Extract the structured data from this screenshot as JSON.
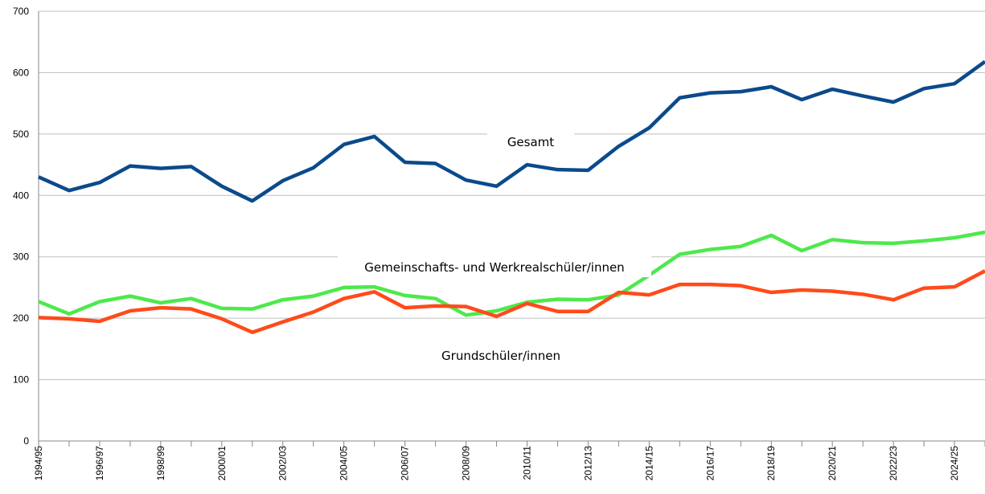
{
  "chart_data": {
    "type": "line",
    "categories": [
      "1994/95",
      null,
      "1996/97",
      null,
      "1998/99",
      null,
      "2000/01",
      null,
      "2002/03",
      null,
      "2004/05",
      null,
      "2006/07",
      null,
      "2008/09",
      null,
      "2010/11",
      null,
      "2012/13",
      null,
      "2014/15",
      null,
      "2016/17",
      null,
      "2018/19",
      null,
      "2020/21",
      null,
      "2022/23",
      null,
      "2024/25",
      null
    ],
    "series": [
      {
        "name": "Gesamt",
        "color": "#0b4a8b",
        "values": [
          430,
          408,
          421,
          448,
          444,
          447,
          415,
          391,
          424,
          445,
          483,
          496,
          454,
          452,
          425,
          415,
          450,
          442,
          441,
          480,
          510,
          559,
          567,
          569,
          577,
          556,
          573,
          562,
          552,
          574,
          582,
          618
        ]
      },
      {
        "name": "Gemeinschafts- und Werkrealschüler/innen",
        "color": "#4de94c",
        "values": [
          227,
          207,
          227,
          236,
          225,
          232,
          216,
          215,
          230,
          236,
          250,
          251,
          237,
          232,
          205,
          212,
          226,
          231,
          230,
          238,
          270,
          304,
          312,
          317,
          335,
          310,
          328,
          323,
          322,
          326,
          331,
          340
        ]
      },
      {
        "name": "Grundschüler/innen",
        "color": "#ff4a1a",
        "values": [
          201,
          199,
          195,
          212,
          217,
          215,
          199,
          177,
          194,
          210,
          232,
          243,
          217,
          220,
          219,
          203,
          224,
          211,
          211,
          242,
          238,
          255,
          255,
          253,
          242,
          246,
          244,
          239,
          230,
          249,
          251,
          277
        ]
      }
    ],
    "ylim": [
      0,
      700
    ],
    "yticks": [
      0,
      100,
      200,
      300,
      400,
      500,
      600,
      700
    ],
    "grid": true
  }
}
